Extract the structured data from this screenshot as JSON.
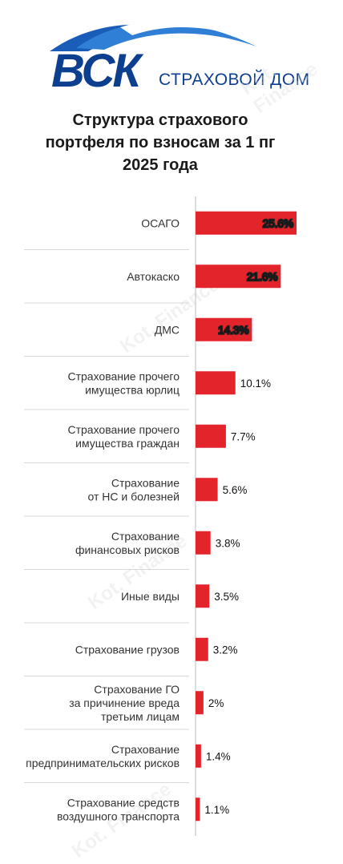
{
  "logo": {
    "brand": "ВСК",
    "sub": "СТРАХОВОЙ ДОМ"
  },
  "title_lines": [
    "Структура страхового",
    "портфеля по взносам за 1 пг",
    "2025 года"
  ],
  "watermark": "Kot. Finance",
  "colors": {
    "bar": "#e3242b",
    "brand": "#0d3f8f",
    "divider": "#d8d8d8"
  },
  "chart_data": {
    "type": "bar",
    "orientation": "horizontal",
    "title": "Структура страхового портфеля по взносам за 1 пг 2025 года",
    "xlabel": "",
    "ylabel": "",
    "unit": "%",
    "categories": [
      [
        "ОСАГО"
      ],
      [
        "Автокаско"
      ],
      [
        "ДМС"
      ],
      [
        "Страхование прочего",
        "имущества юрлиц"
      ],
      [
        "Страхование прочего",
        "имущества граждан"
      ],
      [
        "Страхование",
        "от НС и болезней"
      ],
      [
        "Страхование",
        "финансовых рисков"
      ],
      [
        "Иные виды"
      ],
      [
        "Страхование грузов"
      ],
      [
        "Страхование ГО",
        "за причинение вреда",
        "третьим лицам"
      ],
      [
        "Страхование",
        "предпринимательских рисков"
      ],
      [
        "Страхование средств",
        "воздушного транспорта"
      ]
    ],
    "values": [
      25.6,
      21.6,
      14.3,
      10.1,
      7.7,
      5.6,
      3.8,
      3.5,
      3.2,
      2,
      1.4,
      1.1
    ],
    "value_labels": [
      "25.6%",
      "21.6%",
      "14.3%",
      "10.1%",
      "7.7%",
      "5.6%",
      "3.8%",
      "3.5%",
      "3.2%",
      "2%",
      "1.4%",
      "1.1%"
    ],
    "xlim": [
      0,
      26
    ],
    "grid": false,
    "legend": "none"
  }
}
